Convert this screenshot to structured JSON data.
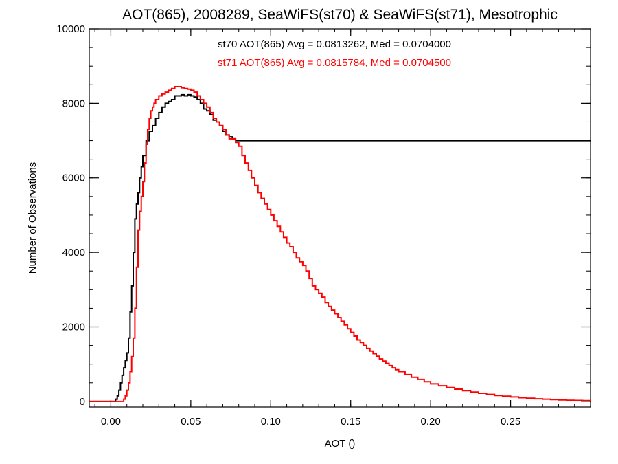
{
  "chart_data": {
    "type": "line",
    "title": "AOT(865), 2008289, SeaWiFS(st70) & SeaWiFS(st71), Mesotrophic",
    "xlabel": "AOT ()",
    "ylabel": "Number of Observations",
    "xlim": [
      -0.0135,
      0.3
    ],
    "ylim": [
      -150,
      10000
    ],
    "xticks": [
      0.0,
      0.05,
      0.1,
      0.15,
      0.2,
      0.25
    ],
    "xtick_labels": [
      "0.00",
      "0.05",
      "0.10",
      "0.15",
      "0.20",
      "0.25"
    ],
    "yticks": [
      0,
      2000,
      4000,
      6000,
      8000,
      10000
    ],
    "ytick_labels": [
      "0",
      "2000",
      "4000",
      "6000",
      "8000",
      "10000"
    ],
    "x_minor_step": 0.01,
    "y_minor_step": 500,
    "grid": false,
    "step_style": "histogram-step",
    "annotations": [
      {
        "text": "st70 AOT(865) Avg = 0.0813262, Med = 0.0704000",
        "color": "#000000"
      },
      {
        "text": "st71 AOT(865) Avg = 0.0815784, Med = 0.0704500",
        "color": "#ff0000"
      }
    ],
    "series": [
      {
        "name": "st70",
        "color": "#000000",
        "x": [
          -0.0135,
          0.0,
          0.002,
          0.003,
          0.004,
          0.005,
          0.006,
          0.007,
          0.008,
          0.009,
          0.01,
          0.011,
          0.012,
          0.013,
          0.014,
          0.015,
          0.016,
          0.017,
          0.018,
          0.019,
          0.02,
          0.022,
          0.024,
          0.026,
          0.028,
          0.03,
          0.032,
          0.034,
          0.036,
          0.038,
          0.04,
          0.042,
          0.044,
          0.046,
          0.048,
          0.05,
          0.052,
          0.054,
          0.056,
          0.058,
          0.06,
          0.062,
          0.064,
          0.066,
          0.068,
          0.07,
          0.072,
          0.074,
          0.076,
          0.078
        ],
        "y": [
          0,
          0,
          0,
          60,
          150,
          300,
          500,
          700,
          900,
          1100,
          1300,
          1700,
          2400,
          3100,
          4000,
          4900,
          5300,
          5600,
          6000,
          6300,
          6600,
          7000,
          7250,
          7400,
          7600,
          7750,
          7900,
          8000,
          8050,
          8100,
          8200,
          8200,
          8230,
          8200,
          8230,
          8200,
          8170,
          8100,
          8000,
          7850,
          7800,
          7700,
          7550,
          7500,
          7400,
          7250,
          7150,
          7100,
          7050,
          7000
        ]
      },
      {
        "name": "st71",
        "color": "#ff0000",
        "x": [
          -0.0135,
          0.0,
          0.005,
          0.008,
          0.009,
          0.01,
          0.011,
          0.012,
          0.013,
          0.014,
          0.015,
          0.016,
          0.017,
          0.018,
          0.019,
          0.02,
          0.021,
          0.022,
          0.023,
          0.024,
          0.025,
          0.026,
          0.027,
          0.028,
          0.03,
          0.032,
          0.034,
          0.036,
          0.038,
          0.04,
          0.042,
          0.044,
          0.046,
          0.048,
          0.05,
          0.052,
          0.054,
          0.056,
          0.058,
          0.06,
          0.062,
          0.064,
          0.066,
          0.068,
          0.07,
          0.072,
          0.074,
          0.076,
          0.078,
          0.08,
          0.082,
          0.084,
          0.086,
          0.088,
          0.09,
          0.092,
          0.094,
          0.096,
          0.098,
          0.1,
          0.102,
          0.104,
          0.106,
          0.108,
          0.11,
          0.112,
          0.114,
          0.116,
          0.118,
          0.12,
          0.122,
          0.124,
          0.126,
          0.128,
          0.13,
          0.132,
          0.134,
          0.136,
          0.138,
          0.14,
          0.142,
          0.144,
          0.146,
          0.148,
          0.15,
          0.152,
          0.154,
          0.156,
          0.158,
          0.16,
          0.162,
          0.164,
          0.166,
          0.168,
          0.17,
          0.172,
          0.174,
          0.176,
          0.178,
          0.18,
          0.184,
          0.188,
          0.192,
          0.196,
          0.2,
          0.205,
          0.21,
          0.215,
          0.22,
          0.225,
          0.23,
          0.235,
          0.24,
          0.245,
          0.25,
          0.255,
          0.26,
          0.265,
          0.27,
          0.275,
          0.28,
          0.285,
          0.29,
          0.295
        ],
        "y": [
          0,
          0,
          0,
          60,
          150,
          300,
          500,
          800,
          1200,
          1700,
          2500,
          3600,
          4600,
          5100,
          5500,
          5900,
          6400,
          6900,
          7300,
          7600,
          7800,
          7900,
          8000,
          8100,
          8200,
          8250,
          8300,
          8350,
          8400,
          8450,
          8450,
          8420,
          8400,
          8380,
          8350,
          8300,
          8200,
          8100,
          8000,
          7900,
          7750,
          7600,
          7500,
          7400,
          7300,
          7150,
          7050,
          7050,
          6950,
          6850,
          6600,
          6400,
          6200,
          6000,
          5800,
          5600,
          5450,
          5300,
          5150,
          5000,
          4850,
          4700,
          4550,
          4400,
          4250,
          4150,
          4000,
          3850,
          3750,
          3650,
          3500,
          3300,
          3100,
          3000,
          2900,
          2800,
          2650,
          2550,
          2450,
          2350,
          2250,
          2150,
          2050,
          1950,
          1850,
          1750,
          1650,
          1580,
          1500,
          1420,
          1350,
          1280,
          1210,
          1140,
          1080,
          1020,
          960,
          900,
          850,
          800,
          720,
          650,
          590,
          530,
          470,
          420,
          370,
          330,
          290,
          250,
          220,
          190,
          160,
          140,
          120,
          100,
          85,
          70,
          60,
          50,
          40,
          30,
          25,
          20
        ]
      }
    ]
  }
}
